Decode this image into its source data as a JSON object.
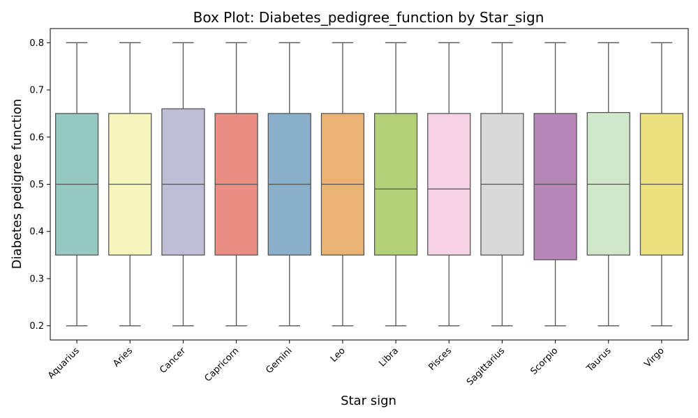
{
  "chart_data": {
    "type": "box",
    "title": "Box Plot: Diabetes_pedigree_function by Star_sign",
    "xlabel": "Star sign",
    "ylabel": "Diabetes pedigree function",
    "ylim": [
      0.17,
      0.83
    ],
    "yticks": [
      "0.2",
      "0.3",
      "0.4",
      "0.5",
      "0.6",
      "0.7",
      "0.8"
    ],
    "grid": false,
    "legend": "none",
    "box_edge_color": "#555555",
    "categories": [
      {
        "name": "Aquarius",
        "min": 0.2,
        "q1": 0.35,
        "median": 0.5,
        "q3": 0.65,
        "max": 0.8,
        "color": "#96cac1"
      },
      {
        "name": "Aries",
        "min": 0.2,
        "q1": 0.35,
        "median": 0.5,
        "q3": 0.65,
        "max": 0.8,
        "color": "#f6f6bc"
      },
      {
        "name": "Cancer",
        "min": 0.2,
        "q1": 0.35,
        "median": 0.5,
        "q3": 0.66,
        "max": 0.8,
        "color": "#c0bdd6"
      },
      {
        "name": "Capricorn",
        "min": 0.2,
        "q1": 0.35,
        "median": 0.5,
        "q3": 0.65,
        "max": 0.8,
        "color": "#ea8e83"
      },
      {
        "name": "Gemini",
        "min": 0.2,
        "q1": 0.35,
        "median": 0.5,
        "q3": 0.65,
        "max": 0.8,
        "color": "#8aafca"
      },
      {
        "name": "Leo",
        "min": 0.2,
        "q1": 0.35,
        "median": 0.5,
        "q3": 0.65,
        "max": 0.8,
        "color": "#eab374"
      },
      {
        "name": "Libra",
        "min": 0.2,
        "q1": 0.35,
        "median": 0.49,
        "q3": 0.65,
        "max": 0.8,
        "color": "#b2d179"
      },
      {
        "name": "Pisces",
        "min": 0.2,
        "q1": 0.35,
        "median": 0.49,
        "q3": 0.65,
        "max": 0.8,
        "color": "#f5d3e4"
      },
      {
        "name": "Sagittarius",
        "min": 0.2,
        "q1": 0.35,
        "median": 0.5,
        "q3": 0.65,
        "max": 0.8,
        "color": "#d9d9d9"
      },
      {
        "name": "Scorpio",
        "min": 0.2,
        "q1": 0.34,
        "median": 0.5,
        "q3": 0.65,
        "max": 0.8,
        "color": "#b487b6"
      },
      {
        "name": "Taurus",
        "min": 0.2,
        "q1": 0.35,
        "median": 0.5,
        "q3": 0.652,
        "max": 0.8,
        "color": "#d0e7c9"
      },
      {
        "name": "Virgo",
        "min": 0.2,
        "q1": 0.35,
        "median": 0.5,
        "q3": 0.65,
        "max": 0.8,
        "color": "#ece07f"
      }
    ]
  }
}
